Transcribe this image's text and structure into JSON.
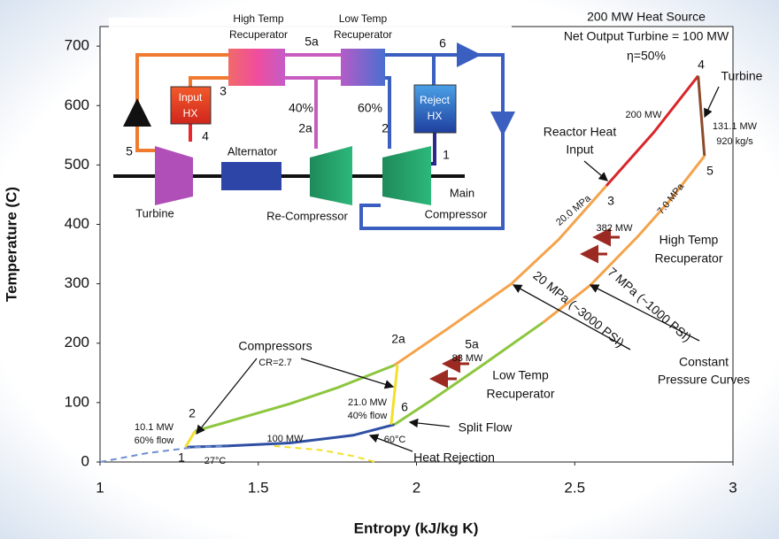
{
  "chart_data": {
    "type": "line",
    "xlabel": "Entropy (kJ/kg K)",
    "ylabel": "Temperature (C)",
    "xlim": [
      1,
      3
    ],
    "xticks": [
      1,
      1.5,
      2,
      2.5,
      3
    ],
    "ylim": [
      0,
      733
    ],
    "yticks": [
      0,
      100,
      200,
      300,
      400,
      500,
      600,
      700
    ],
    "series": [
      {
        "color": "#8dc63f",
        "x": [
          1.3,
          1.45,
          1.6,
          1.75,
          1.93
        ],
        "values": [
          52,
          75,
          98,
          125,
          163
        ]
      },
      {
        "color": "#f5a34a",
        "x": [
          1.93,
          2.1,
          2.3,
          2.45,
          2.6
        ],
        "values": [
          163,
          225,
          300,
          375,
          465
        ]
      },
      {
        "color": "#d9262b",
        "x": [
          2.6,
          2.75,
          2.89
        ],
        "values": [
          465,
          555,
          650
        ]
      },
      {
        "color": "#8b4a2b",
        "x": [
          2.89,
          2.91
        ],
        "values": [
          650,
          515
        ]
      },
      {
        "color": "#f5a34a",
        "x": [
          2.91,
          2.8,
          2.7,
          2.55,
          2.4
        ],
        "values": [
          515,
          440,
          380,
          298,
          235
        ]
      },
      {
        "color": "#8dc63f",
        "x": [
          2.4,
          2.2,
          2.05,
          1.93
        ],
        "values": [
          235,
          160,
          105,
          63
        ]
      },
      {
        "color": "#2e4fa3",
        "x": [
          1.93,
          1.8,
          1.6,
          1.4,
          1.27
        ],
        "values": [
          63,
          45,
          32,
          27,
          25
        ]
      },
      {
        "color": "#f2e02b",
        "x": [
          1.27,
          1.3
        ],
        "values": [
          25,
          52
        ]
      },
      {
        "color": "#f2e02b",
        "x": [
          1.92,
          1.94
        ],
        "values": [
          63,
          163
        ]
      },
      {
        "color": "#6f8fd0",
        "style": "dashed",
        "x": [
          1,
          1.15,
          1.3,
          1.4
        ],
        "values": [
          0,
          15,
          25,
          27
        ]
      },
      {
        "color": "#f2e02b",
        "style": "dashed",
        "x": [
          1.55,
          1.7,
          1.8,
          1.87
        ],
        "values": [
          27,
          20,
          10,
          0
        ]
      }
    ],
    "annotations": [
      "200 MW Heat Source",
      "Net Output Turbine = 100 MW",
      "η=50%",
      "4",
      "Turbine",
      "200 MW",
      "131.1 MW",
      "920 kg/s",
      "Reactor Heat",
      "Input",
      "3",
      "5",
      "20.0 MPa",
      "7.0 MPa",
      "382 MW",
      "High Temp",
      "Recuperator",
      "20 MPa (~3000 PSI)",
      "7 MPa (~1000 PSI)",
      "Constant",
      "Pressure Curves",
      "2a",
      "5a",
      "83 MW",
      "Low Temp",
      "Recuperator",
      "6",
      "Compressors",
      "CR=2.7",
      "2",
      "10.1 MW",
      "60% flow",
      "21.0 MW",
      "40% flow",
      "Split Flow",
      "100 MW",
      "60°C",
      "1",
      "27°C",
      "Heat Rejection"
    ],
    "schematic": [
      "High Temp",
      "Recuperator",
      "Low Temp",
      "Recuperator",
      "5a",
      "6",
      "3",
      "Input",
      "HX",
      "4",
      "40%",
      "2a",
      "60%",
      "2",
      "Reject",
      "HX",
      "5",
      "Alternator",
      "1",
      "Turbine",
      "Re-Compressor",
      "Main",
      "Compressor"
    ]
  }
}
